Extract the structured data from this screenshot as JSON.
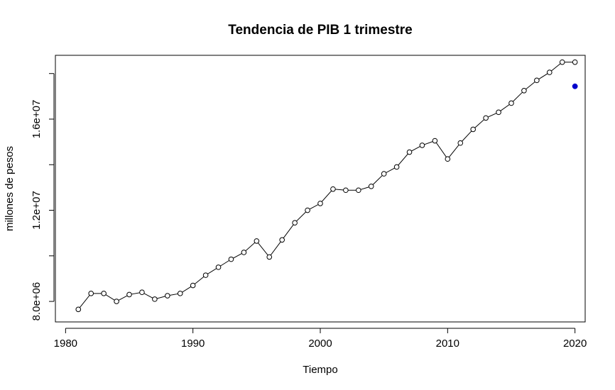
{
  "chart_data": {
    "type": "line",
    "title": "Tendencia de PIB 1 trimestre",
    "xlabel": "Tiempo",
    "ylabel": "millones de pesos",
    "xlim": [
      1979.2,
      2020.8
    ],
    "ylim": [
      7100000,
      18800000
    ],
    "x_ticks": [
      1980,
      1990,
      2000,
      2010,
      2020
    ],
    "x_tick_labels": [
      "1980",
      "1990",
      "2000",
      "2010",
      "2020"
    ],
    "y_ticks": [
      8000000,
      10000000,
      12000000,
      14000000,
      16000000,
      18000000
    ],
    "y_tick_labels": [
      "8.0e+06",
      "",
      "1.2e+07",
      "",
      "1.6e+07",
      ""
    ],
    "grid": false,
    "series": [
      {
        "color": "#000000",
        "marker": "open-circle",
        "x": [
          1981,
          1982,
          1983,
          1984,
          1985,
          1986,
          1987,
          1988,
          1989,
          1990,
          1991,
          1992,
          1993,
          1994,
          1995,
          1996,
          1997,
          1998,
          1999,
          2000,
          2001,
          2002,
          2003,
          2004,
          2005,
          2006,
          2007,
          2008,
          2009,
          2010,
          2011,
          2012,
          2013,
          2014,
          2015,
          2016,
          2017,
          2018,
          2019,
          2020
        ],
        "values": [
          7650000,
          8350000,
          8350000,
          8000000,
          8300000,
          8400000,
          8100000,
          8250000,
          8350000,
          8700000,
          9150000,
          9500000,
          9850000,
          10150000,
          10650000,
          9950000,
          10700000,
          11450000,
          12000000,
          12300000,
          12930000,
          12880000,
          12880000,
          13050000,
          13600000,
          13900000,
          14550000,
          14850000,
          15050000,
          14250000,
          14950000,
          15550000,
          16050000,
          16300000,
          16700000,
          17250000,
          17700000,
          18050000,
          18500000,
          18500000
        ]
      },
      {
        "color": "#0000cc",
        "marker": "filled-circle",
        "x": [
          2020
        ],
        "values": [
          17440000
        ]
      }
    ]
  }
}
